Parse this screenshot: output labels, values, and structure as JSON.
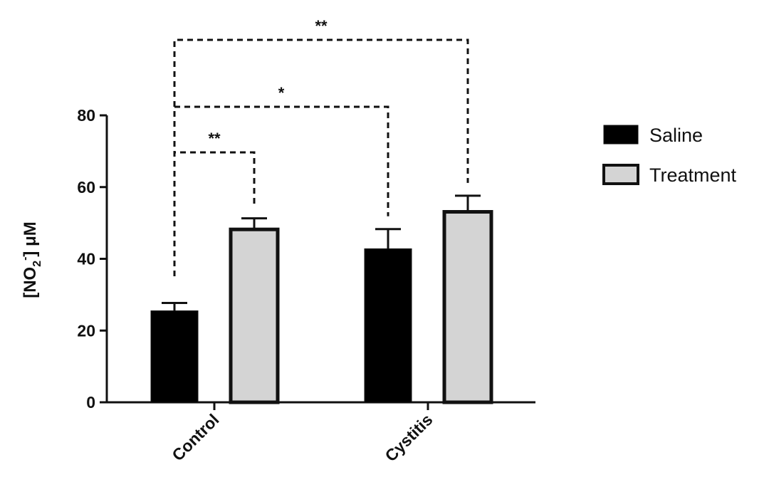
{
  "chart_data": {
    "type": "bar",
    "ylabel": "[NO2-] μM",
    "ylabel_parts": {
      "open": "[NO",
      "sub": "2",
      "sup": "-",
      "close": "] μM"
    },
    "ylim": [
      0,
      80
    ],
    "yticks": [
      0,
      20,
      40,
      60,
      80
    ],
    "ytick_labels": [
      "0",
      "20",
      "40",
      "60",
      "80"
    ],
    "categories": [
      "Control",
      "Cystitis"
    ],
    "series": [
      {
        "name": "Saline",
        "color": "#000000",
        "values": [
          25.5,
          42.8
        ],
        "errors": [
          2.2,
          5.5
        ]
      },
      {
        "name": "Treatment",
        "color": "#d4d4d4",
        "values": [
          48.2,
          53.1
        ],
        "errors": [
          3.1,
          4.5
        ]
      }
    ],
    "legend_position": "right",
    "grid": false,
    "significance": [
      {
        "from": "Control - Saline",
        "to": "Control - Treatment",
        "label": "**"
      },
      {
        "from": "Control - Saline",
        "to": "Cystitis - Saline",
        "label": "*"
      },
      {
        "from": "Control - Saline",
        "to": "Cystitis - Treatment",
        "label": "**"
      }
    ]
  }
}
